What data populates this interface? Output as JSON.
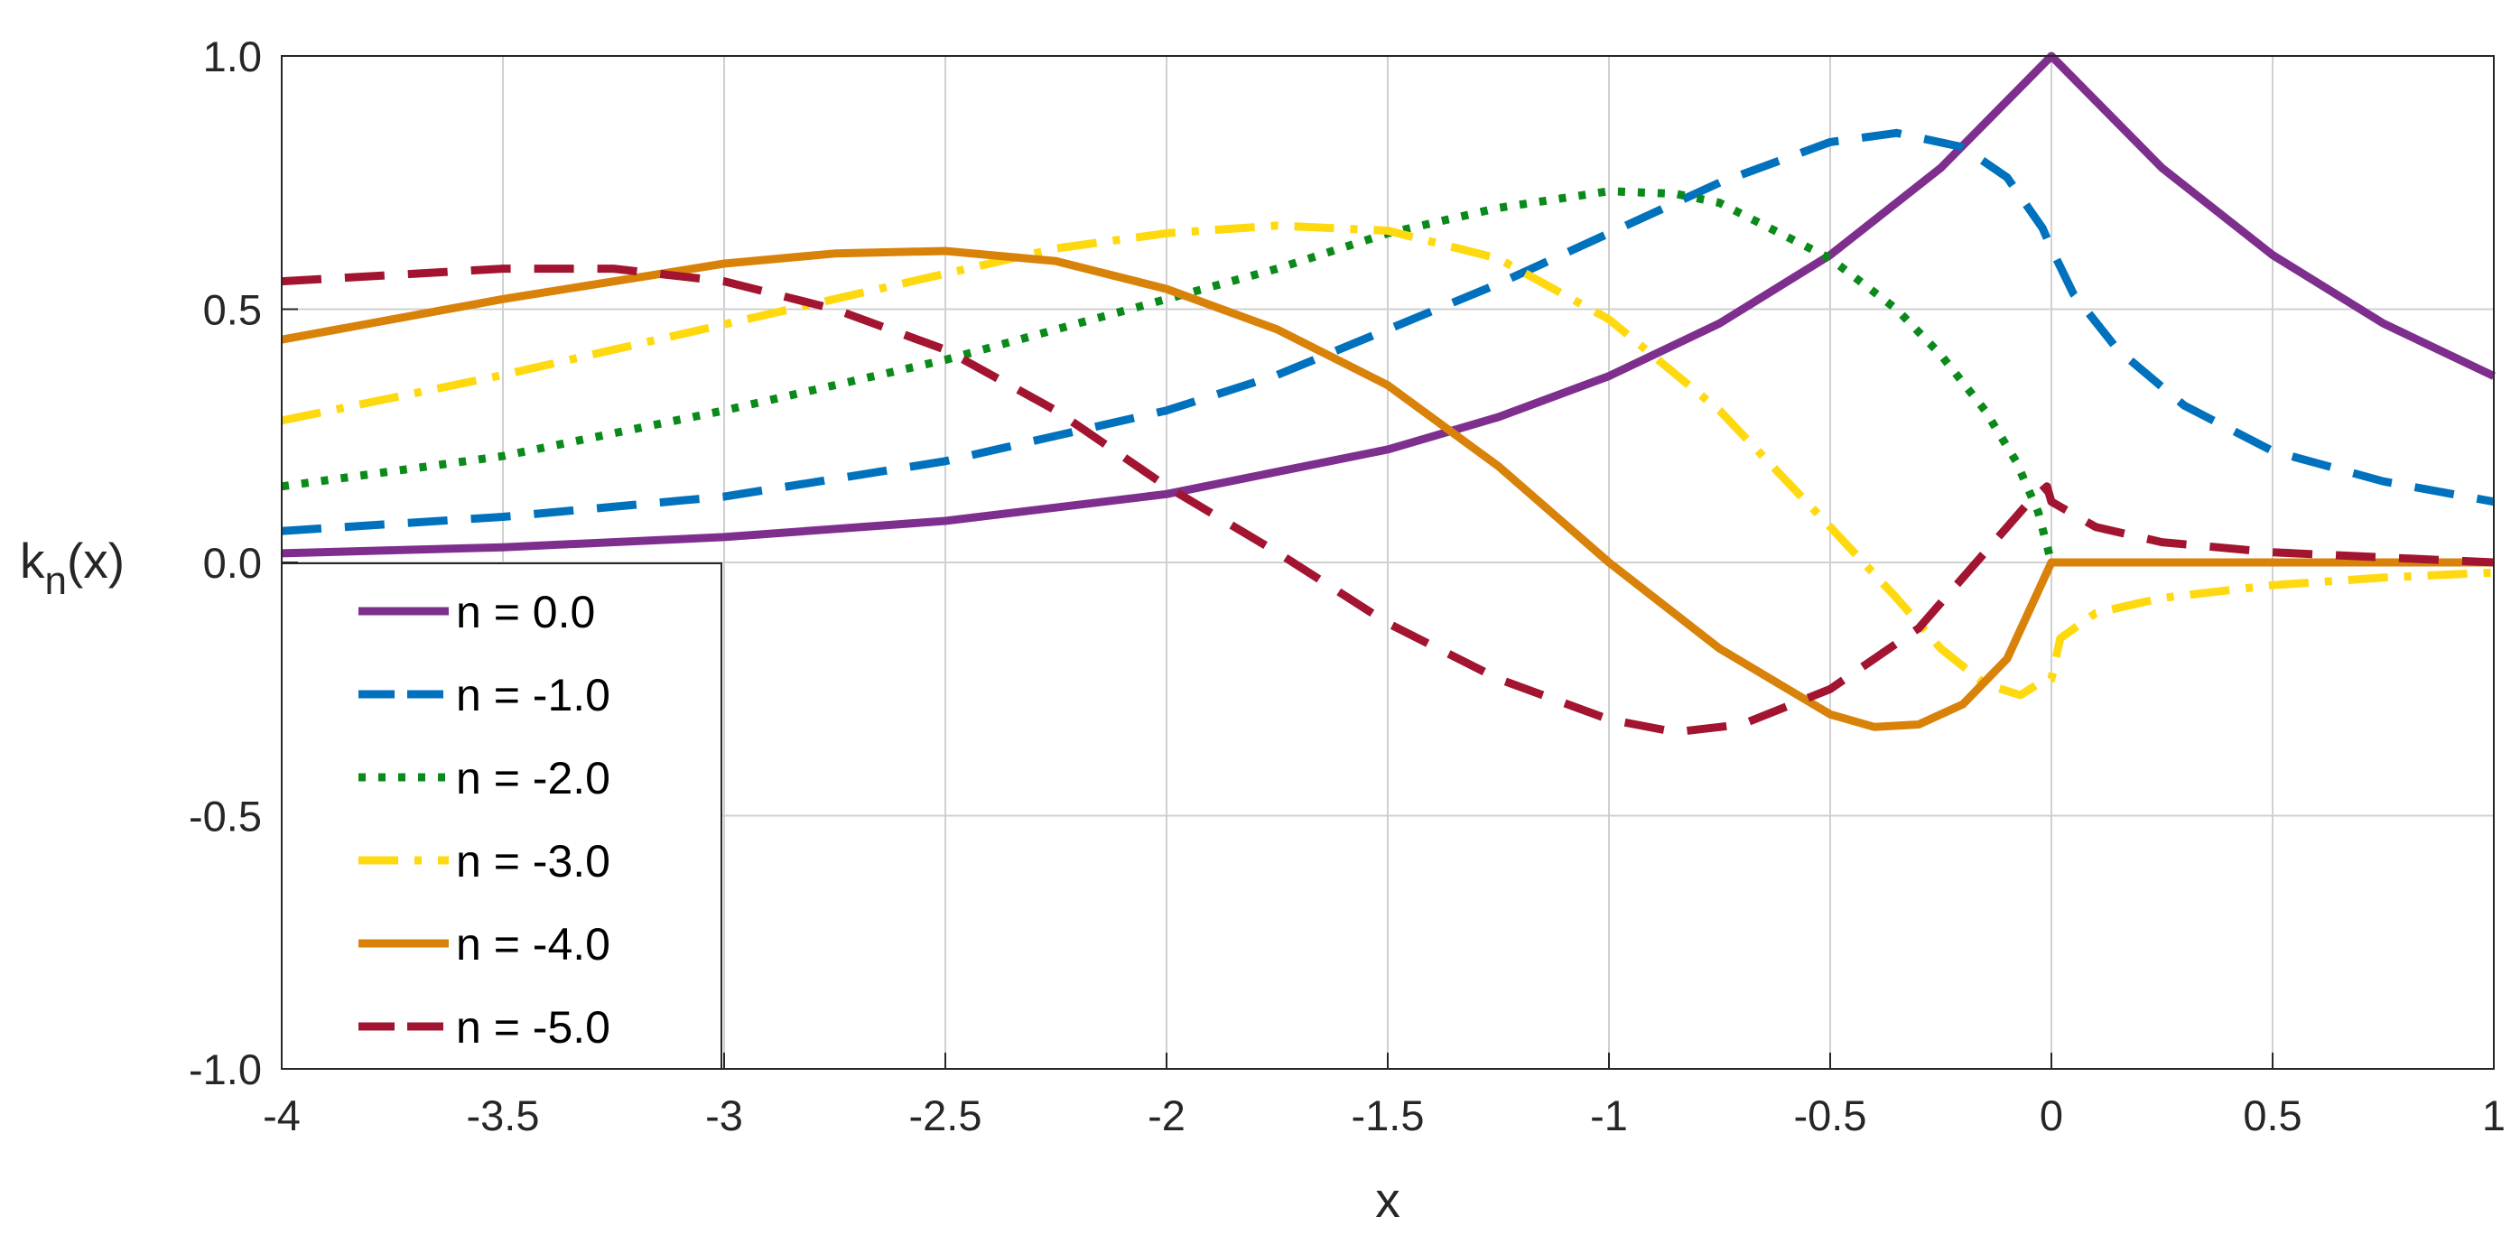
{
  "chart_data": {
    "type": "line",
    "title": "",
    "xlabel": "x",
    "ylabel_main": "k",
    "ylabel_sub": "n",
    "ylabel_suffix": "(x)",
    "xlim": [
      -4,
      1
    ],
    "ylim": [
      -1,
      1
    ],
    "grid": true,
    "legend_position": "lower-left",
    "x_ticks": [
      {
        "value": -4,
        "label": "-4"
      },
      {
        "value": -3.5,
        "label": "-3.5"
      },
      {
        "value": -3,
        "label": "-3"
      },
      {
        "value": -2.5,
        "label": "-2.5"
      },
      {
        "value": -2,
        "label": "-2"
      },
      {
        "value": -1.5,
        "label": "-1.5"
      },
      {
        "value": -1,
        "label": "-1"
      },
      {
        "value": -0.5,
        "label": "-0.5"
      },
      {
        "value": 0,
        "label": "0"
      },
      {
        "value": 0.5,
        "label": "0.5"
      },
      {
        "value": 1,
        "label": "1"
      }
    ],
    "y_ticks": [
      {
        "value": 1,
        "label": "1.0"
      },
      {
        "value": 0.5,
        "label": "0.5"
      },
      {
        "value": 0,
        "label": "0.0"
      },
      {
        "value": -0.5,
        "label": "-0.5"
      },
      {
        "value": -1,
        "label": "-1.0"
      }
    ],
    "series": [
      {
        "name": "n =  0.0",
        "color": "#7E2F8E",
        "style": "solid",
        "points": [
          [
            -4,
            0.018
          ],
          [
            -3.5,
            0.03
          ],
          [
            -3,
            0.05
          ],
          [
            -2.5,
            0.082
          ],
          [
            -2,
            0.135
          ],
          [
            -1.5,
            0.223
          ],
          [
            -1.25,
            0.287
          ],
          [
            -1,
            0.368
          ],
          [
            -0.75,
            0.472
          ],
          [
            -0.5,
            0.607
          ],
          [
            -0.25,
            0.779
          ],
          [
            0,
            1.0
          ],
          [
            0.25,
            0.779
          ],
          [
            0.5,
            0.607
          ],
          [
            0.75,
            0.472
          ],
          [
            1,
            0.368
          ]
        ]
      },
      {
        "name": "n = -1.0",
        "color": "#0072BD",
        "style": "dashed",
        "points": [
          [
            -4,
            0.062
          ],
          [
            -3.5,
            0.09
          ],
          [
            -3,
            0.13
          ],
          [
            -2.5,
            0.2
          ],
          [
            -2,
            0.3
          ],
          [
            -1.75,
            0.37
          ],
          [
            -1.5,
            0.46
          ],
          [
            -1.25,
            0.55
          ],
          [
            -1,
            0.65
          ],
          [
            -0.75,
            0.75
          ],
          [
            -0.5,
            0.83
          ],
          [
            -0.35,
            0.848
          ],
          [
            -0.2,
            0.82
          ],
          [
            -0.1,
            0.76
          ],
          [
            -0.02,
            0.66
          ],
          [
            0,
            0.62
          ],
          [
            0.05,
            0.53
          ],
          [
            0.15,
            0.42
          ],
          [
            0.3,
            0.31
          ],
          [
            0.5,
            0.22
          ],
          [
            0.75,
            0.16
          ],
          [
            1,
            0.12
          ]
        ]
      },
      {
        "name": "n = -2.0",
        "color": "#0A8A1A",
        "style": "dotted",
        "points": [
          [
            -4,
            0.15
          ],
          [
            -3.5,
            0.21
          ],
          [
            -3,
            0.3
          ],
          [
            -2.5,
            0.4
          ],
          [
            -2,
            0.52
          ],
          [
            -1.75,
            0.58
          ],
          [
            -1.5,
            0.65
          ],
          [
            -1.25,
            0.7
          ],
          [
            -1,
            0.733
          ],
          [
            -0.85,
            0.728
          ],
          [
            -0.75,
            0.71
          ],
          [
            -0.5,
            0.6
          ],
          [
            -0.35,
            0.5
          ],
          [
            -0.25,
            0.41
          ],
          [
            -0.15,
            0.3
          ],
          [
            -0.08,
            0.2
          ],
          [
            -0.03,
            0.1
          ],
          [
            0,
            0.0
          ],
          [
            0.25,
            0.0
          ],
          [
            0.5,
            0.0
          ],
          [
            1,
            0.0
          ]
        ]
      },
      {
        "name": "n = -3.0",
        "color": "#FFD90F",
        "style": "dashdot",
        "points": [
          [
            -4,
            0.28
          ],
          [
            -3.5,
            0.37
          ],
          [
            -3,
            0.47
          ],
          [
            -2.5,
            0.57
          ],
          [
            -2.25,
            0.62
          ],
          [
            -2,
            0.65
          ],
          [
            -1.75,
            0.665
          ],
          [
            -1.5,
            0.655
          ],
          [
            -1.25,
            0.6
          ],
          [
            -1,
            0.48
          ],
          [
            -0.75,
            0.3
          ],
          [
            -0.5,
            0.07
          ],
          [
            -0.35,
            -0.07
          ],
          [
            -0.25,
            -0.17
          ],
          [
            -0.15,
            -0.24
          ],
          [
            -0.07,
            -0.262
          ],
          [
            -0.03,
            -0.24
          ],
          [
            0,
            -0.23
          ],
          [
            0.02,
            -0.15
          ],
          [
            0.1,
            -0.1
          ],
          [
            0.25,
            -0.07
          ],
          [
            0.5,
            -0.045
          ],
          [
            0.75,
            -0.03
          ],
          [
            1,
            -0.02
          ]
        ]
      },
      {
        "name": "n = -4.0",
        "color": "#D9820A",
        "style": "solid",
        "points": [
          [
            -4,
            0.44
          ],
          [
            -3.5,
            0.52
          ],
          [
            -3,
            0.59
          ],
          [
            -2.75,
            0.61
          ],
          [
            -2.5,
            0.615
          ],
          [
            -2.25,
            0.595
          ],
          [
            -2,
            0.54
          ],
          [
            -1.75,
            0.46
          ],
          [
            -1.5,
            0.35
          ],
          [
            -1.25,
            0.19
          ],
          [
            -1,
            0.0
          ],
          [
            -0.75,
            -0.17
          ],
          [
            -0.5,
            -0.3
          ],
          [
            -0.4,
            -0.325
          ],
          [
            -0.3,
            -0.32
          ],
          [
            -0.2,
            -0.28
          ],
          [
            -0.1,
            -0.19
          ],
          [
            0,
            0.0
          ],
          [
            0.25,
            0.0
          ],
          [
            0.5,
            0.0
          ],
          [
            0.75,
            0.0
          ],
          [
            1,
            0.0
          ]
        ]
      },
      {
        "name": "n = -5.0",
        "color": "#A2142F",
        "style": "dashed",
        "points": [
          [
            -4,
            0.555
          ],
          [
            -3.5,
            0.58
          ],
          [
            -3.25,
            0.58
          ],
          [
            -3,
            0.555
          ],
          [
            -2.75,
            0.5
          ],
          [
            -2.5,
            0.42
          ],
          [
            -2.25,
            0.3
          ],
          [
            -2,
            0.15
          ],
          [
            -1.75,
            0.02
          ],
          [
            -1.5,
            -0.12
          ],
          [
            -1.25,
            -0.23
          ],
          [
            -1,
            -0.31
          ],
          [
            -0.85,
            -0.335
          ],
          [
            -0.7,
            -0.32
          ],
          [
            -0.5,
            -0.25
          ],
          [
            -0.3,
            -0.13
          ],
          [
            -0.15,
            0.02
          ],
          [
            -0.05,
            0.12
          ],
          [
            -0.01,
            0.15
          ],
          [
            0,
            0.12
          ],
          [
            0.1,
            0.07
          ],
          [
            0.25,
            0.04
          ],
          [
            0.5,
            0.02
          ],
          [
            0.75,
            0.01
          ],
          [
            1,
            0.0
          ]
        ]
      }
    ]
  }
}
